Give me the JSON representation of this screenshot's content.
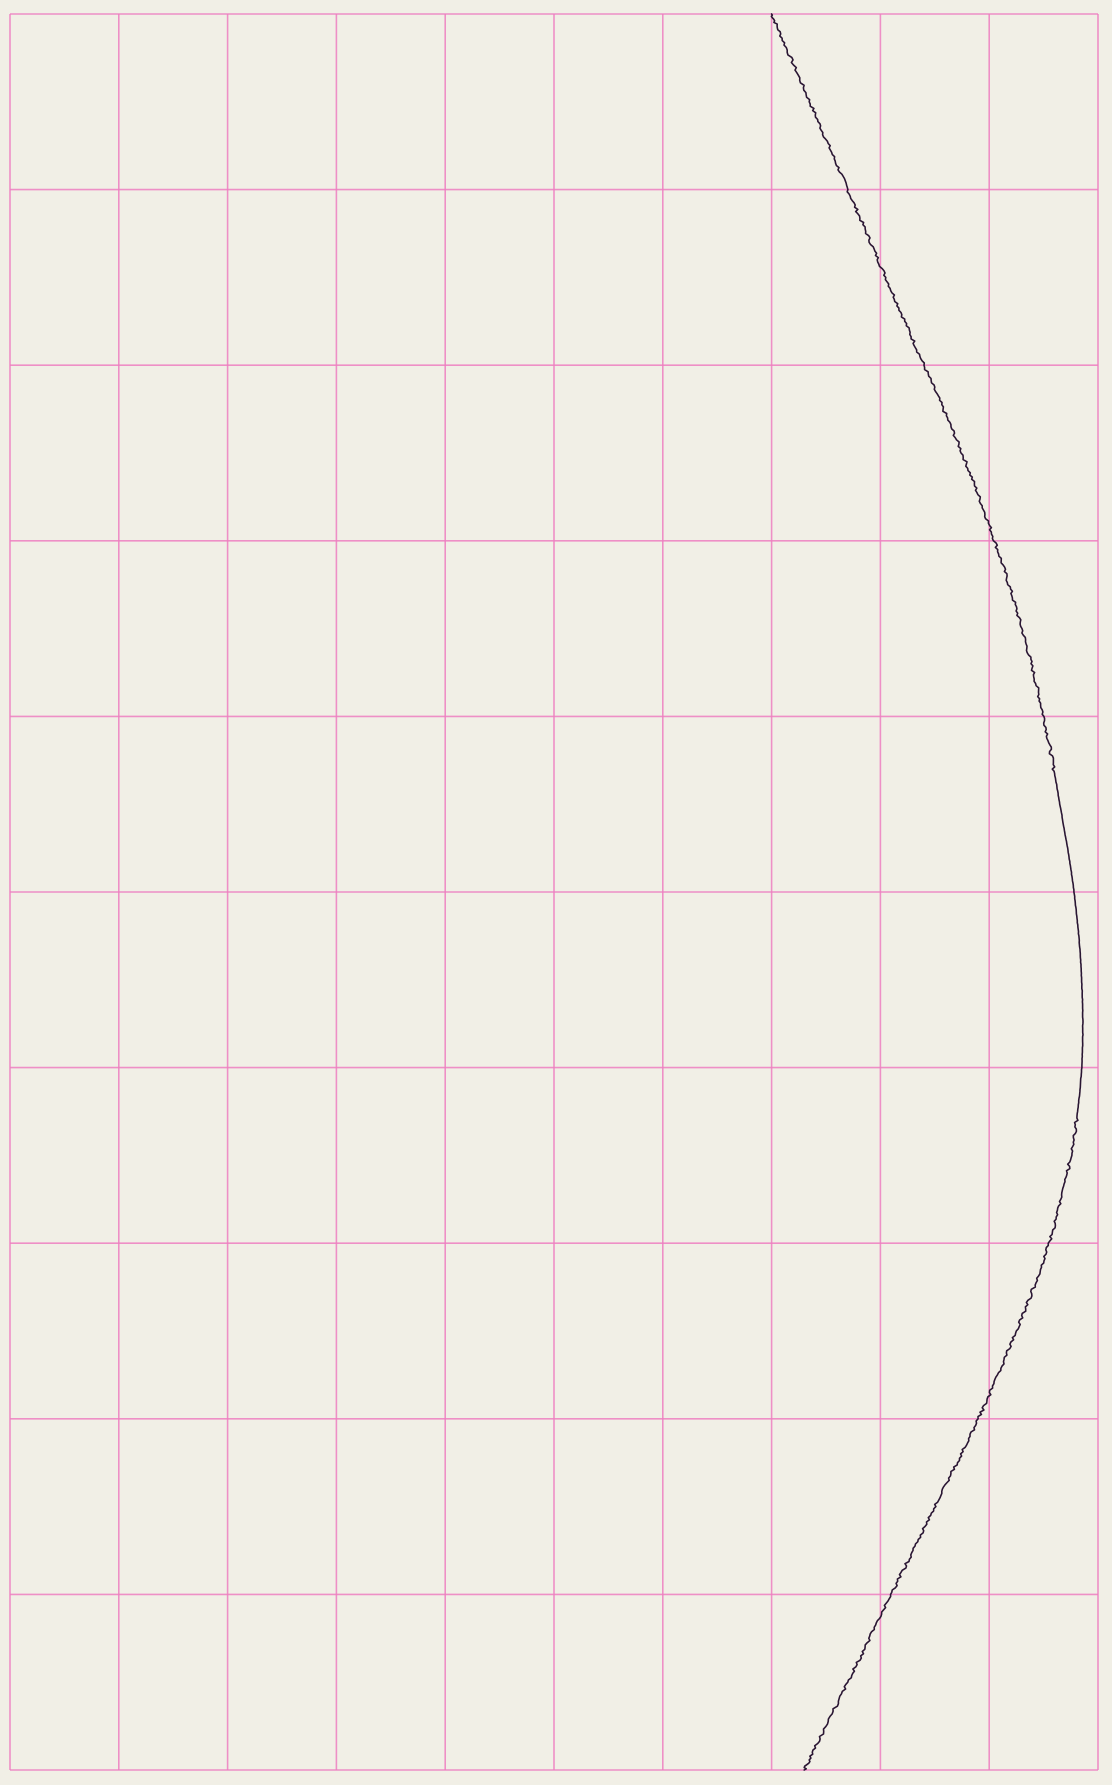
{
  "chart_data": {
    "type": "line",
    "title": "",
    "xlabel": "",
    "ylabel": "",
    "x_range": [
      0,
      10
    ],
    "y_range": [
      0,
      10
    ],
    "grid": true,
    "legend": "none",
    "colors": {
      "background": "#f1efe6",
      "grid": "#ee7fc1",
      "trace": "#2a1633"
    },
    "series": [
      {
        "points": [
          {
            "x": 7.0,
            "y": 0.0
          },
          {
            "x": 7.35,
            "y": 0.5
          },
          {
            "x": 7.7,
            "y": 1.0
          },
          {
            "x": 8.05,
            "y": 1.5
          },
          {
            "x": 8.4,
            "y": 2.0
          },
          {
            "x": 8.75,
            "y": 2.5
          },
          {
            "x": 9.05,
            "y": 3.0
          },
          {
            "x": 9.3,
            "y": 3.5
          },
          {
            "x": 9.5,
            "y": 4.0
          },
          {
            "x": 9.65,
            "y": 4.5
          },
          {
            "x": 9.78,
            "y": 5.0
          },
          {
            "x": 9.85,
            "y": 5.5
          },
          {
            "x": 9.85,
            "y": 6.0
          },
          {
            "x": 9.75,
            "y": 6.5
          },
          {
            "x": 9.55,
            "y": 7.0
          },
          {
            "x": 9.25,
            "y": 7.5
          },
          {
            "x": 8.9,
            "y": 8.0
          },
          {
            "x": 8.5,
            "y": 8.5
          },
          {
            "x": 8.1,
            "y": 9.0
          },
          {
            "x": 7.7,
            "y": 9.5
          },
          {
            "x": 7.3,
            "y": 10.0
          }
        ]
      }
    ]
  }
}
